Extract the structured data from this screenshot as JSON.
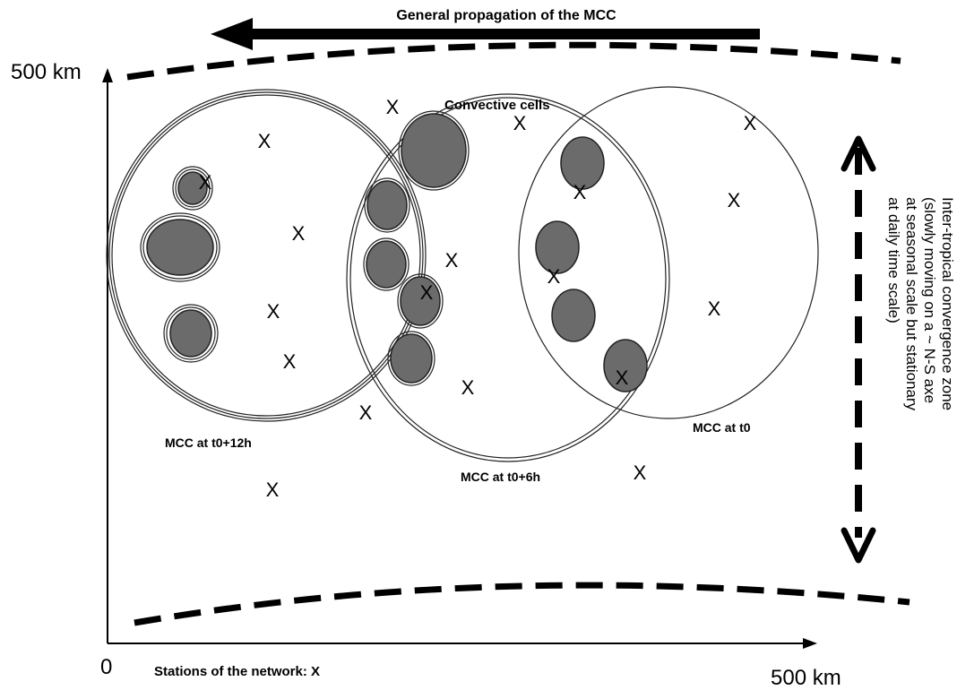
{
  "labels": {
    "propagation": "General propagation of the MCC",
    "y_max": "500 km",
    "x_max": "500 km",
    "origin": "0",
    "convective_cells": "Convective cells",
    "mcc_t0": "MCC at t0",
    "mcc_t6": "MCC at t0+6h",
    "mcc_t12": "MCC at t0+12h",
    "stations_legend": "Stations of the network: X",
    "itcz_lines": [
      "Inter-tropical convergence zone",
      "(slowly moving on a ~ N-S axe",
      "at seasonal scale but stationary",
      "at daily time scale)"
    ]
  },
  "station_marker": "X",
  "colors": {
    "cells": "#6b6b6b",
    "lines": "#000000"
  }
}
